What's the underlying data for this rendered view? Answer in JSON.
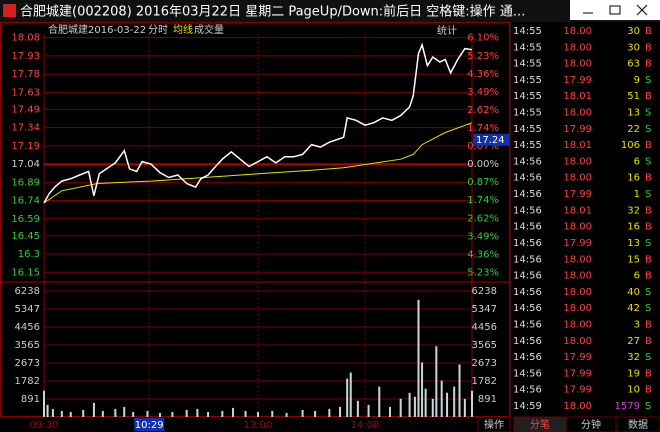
{
  "window_title": "合肥城建(002208) 2016年03月22日 星期二 PageUp/Down:前后日 空格键:操作 通...",
  "chart_header": {
    "name": "合肥城建",
    "date": "2016-03-22",
    "mode": "分时",
    "avg_label": "均线",
    "vol_label": "成交量",
    "stats_button": "统计"
  },
  "chart_data": {
    "type": "line",
    "xlim": [
      0,
      240
    ],
    "xticks": [
      {
        "value": 0,
        "label": "09:30"
      },
      {
        "value": 59,
        "label": "10:29"
      },
      {
        "value": 120,
        "label": "13:00"
      },
      {
        "value": 180,
        "label": "14:00"
      }
    ],
    "ylim": [
      16.07,
      18.11
    ],
    "yticks": [
      18.08,
      17.93,
      17.78,
      17.63,
      17.49,
      17.34,
      17.19,
      17.04,
      16.89,
      16.74,
      16.59,
      16.45,
      16.3,
      16.15
    ],
    "y2lim": [
      -5.69,
      6.28
    ],
    "y2ticks": [
      {
        "value": 6.1,
        "label": "6.10%"
      },
      {
        "value": 5.23,
        "label": "5.23%"
      },
      {
        "value": 4.36,
        "label": "4.36%"
      },
      {
        "value": 3.49,
        "label": "3.49%"
      },
      {
        "value": 2.62,
        "label": "2.62%"
      },
      {
        "value": 1.74,
        "label": "1.74%"
      },
      {
        "value": 0.87,
        "label": "0.87%"
      },
      {
        "value": 0,
        "label": "0.00%"
      },
      {
        "value": -0.87,
        "label": "0.87%"
      },
      {
        "value": -1.74,
        "label": "1.74%"
      },
      {
        "value": -2.62,
        "label": "2.62%"
      },
      {
        "value": -3.49,
        "label": "3.49%"
      },
      {
        "value": -4.36,
        "label": "4.36%"
      },
      {
        "value": -5.23,
        "label": "5.23%"
      }
    ],
    "grid": true,
    "series": [
      {
        "name": "分时",
        "color": "#ffffff",
        "x": [
          0,
          3,
          6,
          10,
          15,
          20,
          25,
          28,
          31,
          35,
          40,
          45,
          48,
          52,
          55,
          60,
          65,
          70,
          75,
          80,
          85,
          88,
          92,
          95,
          100,
          105,
          110,
          115,
          120,
          125,
          130,
          135,
          140,
          145,
          150,
          155,
          160,
          168,
          170,
          175,
          180,
          185,
          190,
          195,
          200,
          205,
          207,
          210,
          212,
          215,
          218,
          222,
          225,
          228,
          232,
          236,
          240
        ],
        "values": [
          16.72,
          16.8,
          16.85,
          16.9,
          16.92,
          16.95,
          16.98,
          16.78,
          16.96,
          17.0,
          17.05,
          17.15,
          17.0,
          16.98,
          17.06,
          17.04,
          16.97,
          16.93,
          16.95,
          16.88,
          16.85,
          16.92,
          16.95,
          17.0,
          17.08,
          17.14,
          17.08,
          17.02,
          17.06,
          17.1,
          17.05,
          17.1,
          17.1,
          17.12,
          17.2,
          17.18,
          17.22,
          17.26,
          17.42,
          17.4,
          17.36,
          17.38,
          17.42,
          17.4,
          17.44,
          17.51,
          17.6,
          17.95,
          18.02,
          17.85,
          17.92,
          17.88,
          17.9,
          17.79,
          17.9,
          17.99,
          17.98
        ]
      },
      {
        "name": "均线",
        "color": "#e8e000",
        "x": [
          0,
          10,
          30,
          60,
          90,
          120,
          150,
          168,
          200,
          207,
          212,
          225,
          240
        ],
        "values": [
          16.72,
          16.82,
          16.88,
          16.9,
          16.93,
          16.96,
          16.99,
          17.01,
          17.08,
          17.12,
          17.2,
          17.3,
          17.38
        ]
      }
    ],
    "volume": {
      "color": "#c8d8d8",
      "ylim": [
        0,
        6680
      ],
      "yticks": [
        6238,
        5347,
        4456,
        3565,
        2673,
        1782,
        891
      ],
      "x": [
        0,
        2,
        5,
        10,
        15,
        22,
        28,
        33,
        40,
        45,
        50,
        58,
        65,
        72,
        80,
        86,
        92,
        100,
        106,
        113,
        120,
        128,
        136,
        145,
        152,
        160,
        166,
        170,
        172,
        176,
        182,
        188,
        194,
        200,
        205,
        208,
        210,
        212,
        214,
        218,
        220,
        223,
        226,
        230,
        233,
        236,
        240
      ],
      "values": [
        1300,
        600,
        400,
        300,
        250,
        350,
        700,
        300,
        400,
        500,
        250,
        300,
        200,
        250,
        350,
        400,
        250,
        300,
        450,
        300,
        250,
        300,
        200,
        350,
        300,
        400,
        500,
        1900,
        2200,
        800,
        600,
        1500,
        500,
        900,
        1200,
        1000,
        5800,
        2700,
        1400,
        900,
        3500,
        1800,
        1200,
        1500,
        2600,
        900,
        1300
      ]
    },
    "cursor": {
      "time": "10:29",
      "price": 17.24
    }
  },
  "trades": {
    "rows": [
      [
        "14:55",
        "18.00",
        30,
        "B"
      ],
      [
        "14:55",
        "18.00",
        30,
        "B"
      ],
      [
        "14:55",
        "18.00",
        63,
        "B"
      ],
      [
        "14:55",
        "17.99",
        9,
        "S"
      ],
      [
        "14:55",
        "18.01",
        51,
        "B"
      ],
      [
        "14:55",
        "18.00",
        13,
        "S"
      ],
      [
        "14:55",
        "17.99",
        22,
        "S"
      ],
      [
        "14:55",
        "18.01",
        106,
        "B"
      ],
      [
        "14:56",
        "18.00",
        6,
        "S"
      ],
      [
        "14:56",
        "18.00",
        16,
        "B"
      ],
      [
        "14:56",
        "17.99",
        1,
        "S"
      ],
      [
        "14:56",
        "18.01",
        32,
        "B"
      ],
      [
        "14:56",
        "18.00",
        16,
        "B"
      ],
      [
        "14:56",
        "17.99",
        13,
        "S"
      ],
      [
        "14:56",
        "18.00",
        15,
        "B"
      ],
      [
        "14:56",
        "18.00",
        6,
        "B"
      ],
      [
        "14:56",
        "18.00",
        40,
        "S"
      ],
      [
        "14:56",
        "18.00",
        42,
        "S"
      ],
      [
        "14:56",
        "18.00",
        3,
        "B"
      ],
      [
        "14:56",
        "18.00",
        27,
        "B"
      ],
      [
        "14:56",
        "17.99",
        32,
        "S"
      ],
      [
        "14:56",
        "17.99",
        19,
        "B"
      ],
      [
        "14:56",
        "17.99",
        10,
        "B"
      ],
      [
        "14:59",
        "18.00",
        1579,
        "S"
      ]
    ]
  },
  "tabs": [
    "操作",
    "分笔",
    "分钟",
    "数据"
  ]
}
